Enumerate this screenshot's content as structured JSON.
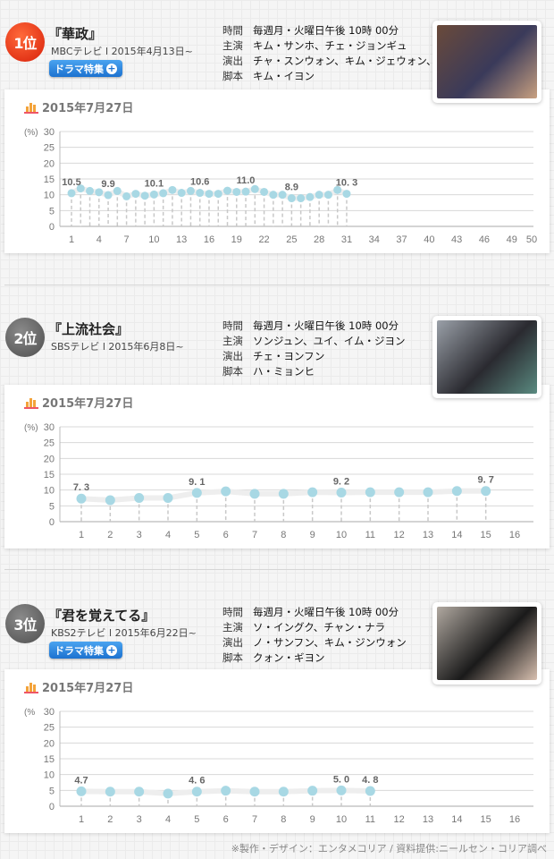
{
  "shows": [
    {
      "rank": "1位",
      "title": "『華政』",
      "network_date": "MBCテレビ l 2015年4月13日~",
      "button": "ドラマ特集",
      "info": [
        {
          "label": "時間",
          "value": "毎週月・火曜日午後 10時 00分"
        },
        {
          "label": "主演",
          "value": "キム・サンホ、チェ・ジョンギュ"
        },
        {
          "label": "演出",
          "value": "チャ・スンウォン、キム・ジェウォン、イ・ヨニ"
        },
        {
          "label": "脚本",
          "value": "キム・イヨン"
        }
      ],
      "date": "2015年7月27日",
      "thumb_colors": [
        "#6a4a3a",
        "#3a3a5a",
        "#c8a080"
      ]
    },
    {
      "rank": "2位",
      "title": "『上流社会』",
      "network_date": "SBSテレビ l 2015年6月8日~",
      "info": [
        {
          "label": "時間",
          "value": "毎週月・火曜日午後 10時 00分"
        },
        {
          "label": "主演",
          "value": "ソンジュン、ユイ、イム・ジヨン"
        },
        {
          "label": "演出",
          "value": "チェ・ヨンフン"
        },
        {
          "label": "脚本",
          "value": "ハ・ミョンヒ"
        }
      ],
      "date": "2015年7月27日",
      "thumb_colors": [
        "#9aa0a8",
        "#2a2a30",
        "#5a8a80"
      ]
    },
    {
      "rank": "3位",
      "title": "『君を覚えてる』",
      "network_date": "KBS2テレビ l 2015年6月22日~",
      "button": "ドラマ特集",
      "info": [
        {
          "label": "時間",
          "value": "毎週月・火曜日午後 10時 00分"
        },
        {
          "label": "主演",
          "value": "ソ・イングク、チャン・ナラ"
        },
        {
          "label": "演出",
          "value": "ノ・サンフン、キム・ジンウォン"
        },
        {
          "label": "脚本",
          "value": "クォン・ギヨン"
        }
      ],
      "date": "2015年7月27日",
      "thumb_colors": [
        "#b0a8a0",
        "#1a1a1a",
        "#d8c0b0"
      ]
    }
  ],
  "footer": "※製作・デザイン：エンタメコリア / 資料提供:ニールセン・コリア調べ",
  "colors": {
    "point": "#a8d8e4",
    "rank1": "#e8401a",
    "rank_other": "#666666",
    "button": "#2a86e0"
  },
  "chart_data": [
    {
      "type": "line",
      "ylabel": "(%)",
      "ylim": [
        0,
        30
      ],
      "yticks": [
        0,
        5,
        10,
        15,
        20,
        25,
        30
      ],
      "xlim": [
        1,
        50
      ],
      "xticks": [
        1,
        4,
        7,
        10,
        13,
        16,
        19,
        22,
        25,
        28,
        31,
        34,
        37,
        40,
        43,
        46,
        49,
        50
      ],
      "grid": true,
      "x": [
        1,
        2,
        3,
        4,
        5,
        6,
        7,
        8,
        9,
        10,
        11,
        12,
        13,
        14,
        15,
        16,
        17,
        18,
        19,
        20,
        21,
        22,
        23,
        24,
        25,
        26,
        27,
        28,
        29,
        30,
        31
      ],
      "values": [
        10.5,
        12.0,
        11.2,
        10.8,
        9.9,
        11.2,
        9.5,
        10.3,
        9.7,
        10.1,
        10.5,
        11.5,
        10.6,
        11.2,
        10.6,
        10.3,
        10.3,
        11.3,
        10.9,
        11.0,
        11.8,
        10.9,
        10.0,
        10.0,
        8.9,
        8.9,
        9.3,
        10.0,
        10.0,
        11.5,
        10.3
      ],
      "data_labels": [
        {
          "x": 1,
          "text": "10.5"
        },
        {
          "x": 5,
          "text": "9.9"
        },
        {
          "x": 10,
          "text": "10.1"
        },
        {
          "x": 15,
          "text": "10.6"
        },
        {
          "x": 20,
          "text": "11.0"
        },
        {
          "x": 25,
          "text": "8.9"
        },
        {
          "x": 31,
          "text": "10. 3"
        }
      ]
    },
    {
      "type": "line",
      "ylabel": "(%)",
      "ylim": [
        0,
        30
      ],
      "yticks": [
        0,
        5,
        10,
        15,
        20,
        25,
        30
      ],
      "xlim": [
        1,
        16
      ],
      "xticks": [
        1,
        2,
        3,
        4,
        5,
        6,
        7,
        8,
        9,
        10,
        11,
        12,
        13,
        14,
        15,
        16
      ],
      "grid": true,
      "x": [
        1,
        2,
        3,
        4,
        5,
        6,
        7,
        8,
        9,
        10,
        11,
        12,
        13,
        14,
        15
      ],
      "values": [
        7.3,
        6.8,
        7.5,
        7.5,
        9.1,
        9.6,
        8.8,
        8.8,
        9.3,
        9.2,
        9.3,
        9.3,
        9.3,
        9.7,
        9.7
      ],
      "data_labels": [
        {
          "x": 1,
          "text": "7. 3"
        },
        {
          "x": 5,
          "text": "9. 1"
        },
        {
          "x": 10,
          "text": "9. 2"
        },
        {
          "x": 15,
          "text": "9. 7"
        }
      ]
    },
    {
      "type": "line",
      "ylabel": "(%",
      "ylim": [
        0,
        30
      ],
      "yticks": [
        0,
        5,
        10,
        15,
        20,
        25,
        30
      ],
      "xlim": [
        1,
        16
      ],
      "xticks": [
        1,
        2,
        3,
        4,
        5,
        6,
        7,
        8,
        9,
        10,
        11,
        12,
        13,
        14,
        15,
        16
      ],
      "grid": true,
      "x": [
        1,
        2,
        3,
        4,
        5,
        6,
        7,
        8,
        9,
        10,
        11
      ],
      "values": [
        4.7,
        4.6,
        4.6,
        4.0,
        4.6,
        4.9,
        4.6,
        4.6,
        4.9,
        5.0,
        4.8
      ],
      "data_labels": [
        {
          "x": 1,
          "text": "4.7"
        },
        {
          "x": 5,
          "text": "4. 6"
        },
        {
          "x": 10,
          "text": "5. 0"
        },
        {
          "x": 11,
          "text": "4. 8"
        }
      ]
    }
  ]
}
